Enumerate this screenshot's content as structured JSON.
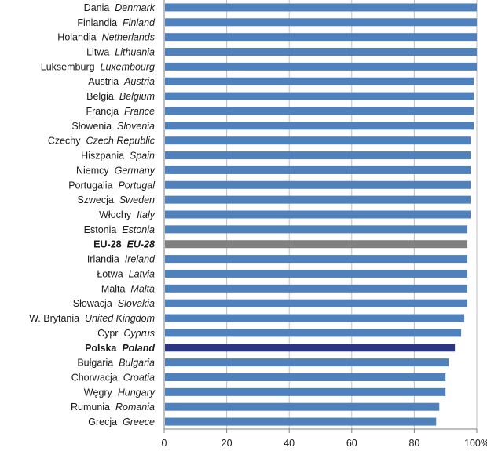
{
  "chart_data": {
    "type": "bar",
    "orientation": "horizontal",
    "title": "",
    "xlabel": "",
    "ylabel": "",
    "xlim": [
      0,
      100
    ],
    "x_ticks": [
      "0",
      "20",
      "40",
      "60",
      "80",
      "100%"
    ],
    "grid": true,
    "categories": [
      {
        "pl": "Dania",
        "en": "Denmark"
      },
      {
        "pl": "Finlandia",
        "en": "Finland"
      },
      {
        "pl": "Holandia",
        "en": "Netherlands"
      },
      {
        "pl": "Litwa",
        "en": "Lithuania"
      },
      {
        "pl": "Luksemburg",
        "en": "Luxembourg"
      },
      {
        "pl": "Austria",
        "en": "Austria"
      },
      {
        "pl": "Belgia",
        "en": "Belgium"
      },
      {
        "pl": "Francja",
        "en": "France"
      },
      {
        "pl": "Słowenia",
        "en": "Slovenia"
      },
      {
        "pl": "Czechy",
        "en": "Czech Republic"
      },
      {
        "pl": "Hiszpania",
        "en": "Spain"
      },
      {
        "pl": "Niemcy",
        "en": "Germany"
      },
      {
        "pl": "Portugalia",
        "en": "Portugal"
      },
      {
        "pl": "Szwecja",
        "en": "Sweden"
      },
      {
        "pl": "Włochy",
        "en": "Italy"
      },
      {
        "pl": "Estonia",
        "en": "Estonia"
      },
      {
        "pl": "EU-28",
        "en": "EU-28",
        "highlight": "eu"
      },
      {
        "pl": "Irlandia",
        "en": "Ireland"
      },
      {
        "pl": "Łotwa",
        "en": "Latvia"
      },
      {
        "pl": "Malta",
        "en": "Malta"
      },
      {
        "pl": "Słowacja",
        "en": "Slovakia"
      },
      {
        "pl": "W. Brytania",
        "en": "United Kingdom"
      },
      {
        "pl": "Cypr",
        "en": "Cyprus"
      },
      {
        "pl": "Polska",
        "en": "Poland",
        "highlight": "poland"
      },
      {
        "pl": "Bułgaria",
        "en": "Bulgaria"
      },
      {
        "pl": "Chorwacja",
        "en": "Croatia"
      },
      {
        "pl": "Węgry",
        "en": "Hungary"
      },
      {
        "pl": "Rumunia",
        "en": "Romania"
      },
      {
        "pl": "Grecja",
        "en": "Greece"
      }
    ],
    "values": [
      100,
      100,
      100,
      100,
      100,
      99,
      99,
      99,
      99,
      98,
      98,
      98,
      98,
      98,
      98,
      97,
      97,
      97,
      97,
      97,
      97,
      96,
      95,
      93,
      91,
      90,
      90,
      88,
      87
    ],
    "colors": {
      "default": "#4f81bd",
      "eu": "#808080",
      "poland": "#2b3580",
      "grid": "#bfbfbf",
      "axis": "#7f7f7f"
    }
  }
}
